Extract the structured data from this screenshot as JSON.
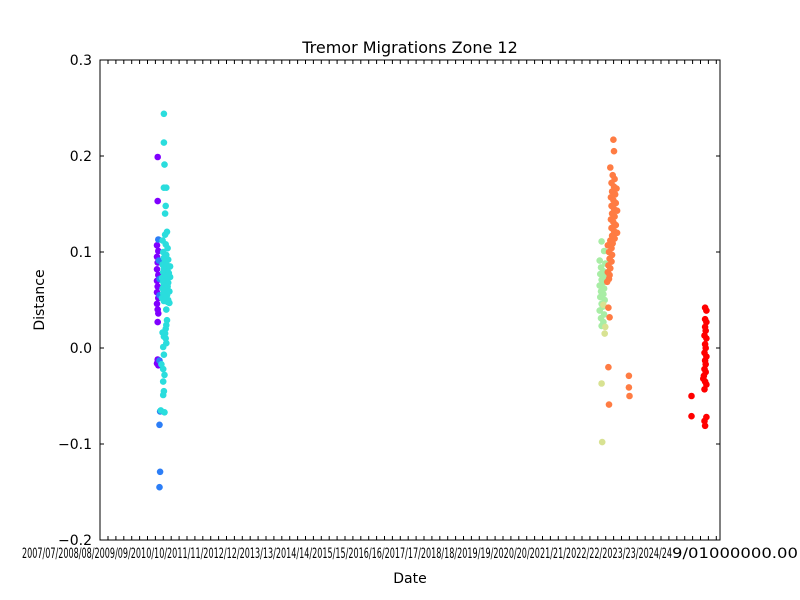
{
  "chart_data": {
    "type": "scatter",
    "title": "Tremor Migrations Zone 12",
    "xlabel": "Date",
    "ylabel": "Distance",
    "ylim": [
      -0.2,
      0.3
    ],
    "yticks": [
      -0.2,
      -0.1,
      0.0,
      0.1,
      0.2,
      0.3
    ],
    "ytick_labels": [
      "−0.2",
      "−0.1",
      "0.0",
      "0.1",
      "0.2",
      "0.3"
    ],
    "xlim": [
      0,
      100
    ],
    "xticks_overlapped_text": "2007/07/2008/08/2009/09/2010/10/2011/11/2012/12/2013/13/2014/14/2015/15/2016/16/2017/17/2018/18/2019/19/2020/20/2021/21/2022/22/2023/23/2024/24",
    "xticks_right_text": "9/01000000.00",
    "grid": false,
    "legend": "none",
    "series": [
      {
        "color": "#8000ff",
        "points": [
          [
            9.3,
            0.199
          ],
          [
            9.3,
            0.153
          ],
          [
            9.2,
            0.107
          ],
          [
            9.4,
            0.101
          ],
          [
            9.2,
            0.095
          ],
          [
            9.3,
            0.089
          ],
          [
            9.2,
            0.082
          ],
          [
            9.4,
            0.076
          ],
          [
            9.2,
            0.07
          ],
          [
            9.3,
            0.064
          ],
          [
            9.2,
            0.058
          ],
          [
            9.4,
            0.052
          ],
          [
            9.2,
            0.046
          ],
          [
            9.3,
            0.04
          ],
          [
            9.4,
            0.036
          ],
          [
            9.3,
            0.027
          ],
          [
            9.3,
            -0.012
          ],
          [
            9.2,
            -0.016
          ],
          [
            9.4,
            -0.018
          ]
        ]
      },
      {
        "color": "#2c7ef7",
        "points": [
          [
            9.4,
            0.113
          ],
          [
            9.5,
            0.091
          ],
          [
            9.6,
            0.072
          ],
          [
            9.6,
            0.055
          ],
          [
            9.6,
            -0.013
          ],
          [
            9.7,
            -0.066
          ],
          [
            9.6,
            -0.08
          ],
          [
            9.7,
            -0.129
          ],
          [
            9.6,
            -0.145
          ]
        ]
      },
      {
        "color": "#2adddd",
        "points": [
          [
            10.3,
            0.244
          ],
          [
            10.3,
            0.214
          ],
          [
            10.4,
            0.191
          ],
          [
            10.3,
            0.167
          ],
          [
            10.7,
            0.167
          ],
          [
            10.6,
            0.148
          ],
          [
            10.5,
            0.14
          ],
          [
            10.5,
            0.118
          ],
          [
            10.8,
            0.121
          ],
          [
            10.1,
            0.112
          ],
          [
            10.6,
            0.108
          ],
          [
            10.9,
            0.104
          ],
          [
            10.2,
            0.1
          ],
          [
            10.7,
            0.097
          ],
          [
            10.3,
            0.094
          ],
          [
            11.0,
            0.092
          ],
          [
            10.5,
            0.09
          ],
          [
            10.1,
            0.087
          ],
          [
            10.8,
            0.086
          ],
          [
            11.3,
            0.085
          ],
          [
            10.3,
            0.083
          ],
          [
            10.6,
            0.081
          ],
          [
            10.9,
            0.08
          ],
          [
            10.2,
            0.079
          ],
          [
            11.1,
            0.078
          ],
          [
            10.4,
            0.076
          ],
          [
            10.7,
            0.075
          ],
          [
            11.3,
            0.074
          ],
          [
            10.0,
            0.073
          ],
          [
            10.5,
            0.072
          ],
          [
            10.8,
            0.071
          ],
          [
            10.2,
            0.069
          ],
          [
            11.0,
            0.068
          ],
          [
            10.6,
            0.066
          ],
          [
            10.3,
            0.065
          ],
          [
            10.9,
            0.064
          ],
          [
            10.1,
            0.062
          ],
          [
            10.7,
            0.061
          ],
          [
            10.4,
            0.06
          ],
          [
            11.2,
            0.059
          ],
          [
            10.2,
            0.057
          ],
          [
            10.8,
            0.055
          ],
          [
            10.5,
            0.054
          ],
          [
            10.0,
            0.052
          ],
          [
            10.6,
            0.051
          ],
          [
            11.0,
            0.05
          ],
          [
            10.3,
            0.049
          ],
          [
            10.9,
            0.048
          ],
          [
            11.2,
            0.047
          ],
          [
            10.7,
            0.04
          ],
          [
            10.8,
            0.029
          ],
          [
            10.7,
            0.024
          ],
          [
            10.6,
            0.02
          ],
          [
            10.1,
            0.016
          ],
          [
            10.5,
            0.015
          ],
          [
            10.3,
            0.012
          ],
          [
            10.6,
            0.01
          ],
          [
            10.7,
            0.005
          ],
          [
            10.2,
            0.001
          ],
          [
            10.3,
            -0.007
          ],
          [
            9.9,
            -0.017
          ],
          [
            10.2,
            -0.022
          ],
          [
            10.4,
            -0.028
          ],
          [
            10.2,
            -0.035
          ],
          [
            10.3,
            -0.045
          ],
          [
            10.2,
            -0.049
          ],
          [
            9.8,
            -0.065
          ],
          [
            10.4,
            -0.067
          ]
        ]
      },
      {
        "color": "#a8eda5",
        "points": [
          [
            80.9,
            0.111
          ],
          [
            81.3,
            0.101
          ],
          [
            80.6,
            0.091
          ],
          [
            81.5,
            0.088
          ],
          [
            80.8,
            0.084
          ],
          [
            81.2,
            0.08
          ],
          [
            80.7,
            0.077
          ],
          [
            81.4,
            0.074
          ],
          [
            80.9,
            0.071
          ],
          [
            81.1,
            0.068
          ],
          [
            80.6,
            0.065
          ],
          [
            81.3,
            0.062
          ],
          [
            80.8,
            0.059
          ],
          [
            81.2,
            0.056
          ],
          [
            80.7,
            0.053
          ],
          [
            81.4,
            0.05
          ],
          [
            80.9,
            0.046
          ],
          [
            81.1,
            0.043
          ],
          [
            80.6,
            0.039
          ],
          [
            81.3,
            0.035
          ],
          [
            80.8,
            0.031
          ],
          [
            81.2,
            0.027
          ],
          [
            80.9,
            0.023
          ]
        ]
      },
      {
        "color": "#d8e292",
        "points": [
          [
            81.2,
            0.045
          ],
          [
            81.5,
            0.022
          ],
          [
            81.4,
            0.015
          ],
          [
            80.9,
            -0.037
          ],
          [
            81.0,
            -0.098
          ]
        ]
      },
      {
        "color": "#ff7c43",
        "points": [
          [
            82.8,
            0.217
          ],
          [
            82.9,
            0.205
          ],
          [
            82.3,
            0.188
          ],
          [
            82.7,
            0.18
          ],
          [
            83.0,
            0.176
          ],
          [
            82.5,
            0.172
          ],
          [
            82.9,
            0.168
          ],
          [
            83.3,
            0.166
          ],
          [
            82.6,
            0.163
          ],
          [
            83.1,
            0.16
          ],
          [
            82.4,
            0.157
          ],
          [
            82.8,
            0.154
          ],
          [
            83.2,
            0.151
          ],
          [
            82.5,
            0.148
          ],
          [
            82.9,
            0.145
          ],
          [
            83.4,
            0.143
          ],
          [
            82.6,
            0.14
          ],
          [
            83.0,
            0.137
          ],
          [
            82.4,
            0.134
          ],
          [
            82.8,
            0.131
          ],
          [
            83.2,
            0.128
          ],
          [
            82.5,
            0.125
          ],
          [
            82.9,
            0.122
          ],
          [
            83.4,
            0.12
          ],
          [
            82.6,
            0.117
          ],
          [
            83.0,
            0.114
          ],
          [
            82.3,
            0.112
          ],
          [
            82.7,
            0.109
          ],
          [
            81.9,
            0.107
          ],
          [
            82.5,
            0.104
          ],
          [
            82.1,
            0.1
          ],
          [
            82.6,
            0.097
          ],
          [
            82.2,
            0.093
          ],
          [
            82.5,
            0.09
          ],
          [
            82.0,
            0.086
          ],
          [
            82.3,
            0.083
          ],
          [
            81.9,
            0.079
          ],
          [
            82.2,
            0.076
          ],
          [
            82.1,
            0.072
          ],
          [
            81.8,
            0.069
          ],
          [
            82.0,
            0.042
          ],
          [
            82.2,
            0.032
          ],
          [
            82.0,
            -0.02
          ],
          [
            82.1,
            -0.059
          ],
          [
            85.3,
            -0.029
          ],
          [
            85.3,
            -0.041
          ],
          [
            85.4,
            -0.05
          ]
        ]
      },
      {
        "color": "#ff0000",
        "points": [
          [
            97.6,
            0.042
          ],
          [
            97.8,
            0.039
          ],
          [
            97.6,
            0.03
          ],
          [
            97.8,
            0.027
          ],
          [
            97.6,
            0.022
          ],
          [
            97.7,
            0.018
          ],
          [
            97.5,
            0.013
          ],
          [
            97.8,
            0.01
          ],
          [
            97.6,
            0.004
          ],
          [
            97.7,
            0.0
          ],
          [
            97.5,
            -0.005
          ],
          [
            97.8,
            -0.009
          ],
          [
            97.6,
            -0.013
          ],
          [
            97.7,
            -0.017
          ],
          [
            97.5,
            -0.022
          ],
          [
            97.7,
            -0.025
          ],
          [
            97.4,
            -0.029
          ],
          [
            97.3,
            -0.032
          ],
          [
            97.6,
            -0.035
          ],
          [
            97.8,
            -0.038
          ],
          [
            97.5,
            -0.043
          ],
          [
            95.4,
            -0.05
          ],
          [
            95.4,
            -0.071
          ],
          [
            97.5,
            -0.076
          ],
          [
            97.8,
            -0.072
          ],
          [
            97.6,
            -0.081
          ]
        ]
      }
    ]
  }
}
